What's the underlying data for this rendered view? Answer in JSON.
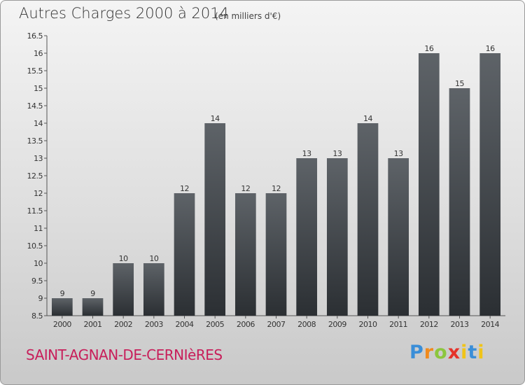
{
  "header": {
    "title": "Autres Charges 2000 à 2014",
    "unit": "(en milliers d'€)"
  },
  "footer": {
    "commune": "SAINT-AGNAN-DE-CERNIèRES",
    "brand": [
      "P",
      "r",
      "o",
      "x",
      "i",
      "t",
      "i"
    ]
  },
  "colors": {
    "bar_top": "#5e6368",
    "bar_bottom": "#2b2f33",
    "commune": "#c81e5a"
  },
  "chart_data": {
    "type": "bar",
    "categories": [
      "2000",
      "2001",
      "2002",
      "2003",
      "2004",
      "2005",
      "2006",
      "2007",
      "2008",
      "2009",
      "2010",
      "2011",
      "2012",
      "2013",
      "2014"
    ],
    "values": [
      9,
      9,
      10,
      10,
      12,
      14,
      12,
      12,
      13,
      13,
      14,
      13,
      16,
      15,
      16
    ],
    "ylim": [
      8.5,
      16.5
    ],
    "yticks": [
      8.5,
      9,
      9.5,
      10,
      10.5,
      11,
      11.5,
      12,
      12.5,
      13,
      13.5,
      14,
      14.5,
      15,
      15.5,
      16,
      16.5
    ],
    "grid": false,
    "legend": "none"
  }
}
